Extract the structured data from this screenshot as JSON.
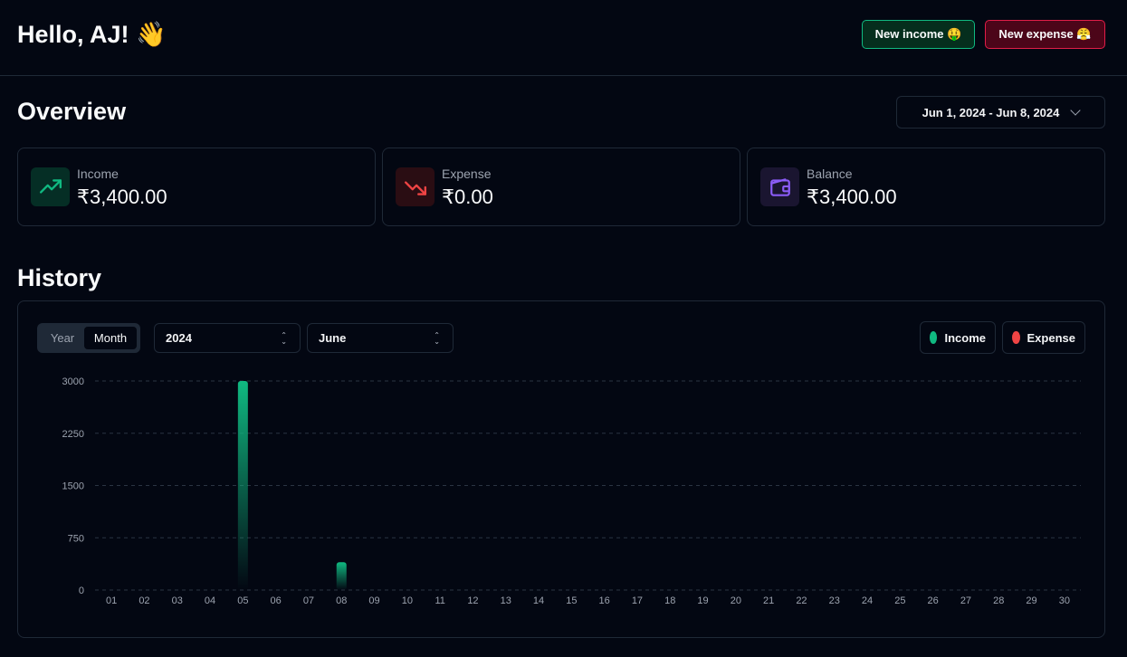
{
  "header": {
    "greeting": "Hello, AJ! 👋",
    "new_income_label": "New income 🤑",
    "new_expense_label": "New expense 😤"
  },
  "overview": {
    "title": "Overview",
    "date_range": "Jun 1, 2024 - Jun 8, 2024",
    "cards": [
      {
        "label": "Income",
        "value": "₹3,400.00",
        "icon": "trending-up-icon",
        "color": "#10b981"
      },
      {
        "label": "Expense",
        "value": "₹0.00",
        "icon": "trending-down-icon",
        "color": "#ef4444"
      },
      {
        "label": "Balance",
        "value": "₹3,400.00",
        "icon": "wallet-icon",
        "color": "#8b5cf6"
      }
    ]
  },
  "history": {
    "title": "History",
    "timeframe_options": [
      "Year",
      "Month"
    ],
    "timeframe_selected": "Month",
    "year_select": "2024",
    "month_select": "June",
    "legend": [
      {
        "label": "Income",
        "color": "#10b981"
      },
      {
        "label": "Expense",
        "color": "#ef4444"
      }
    ]
  },
  "chart_data": {
    "type": "bar",
    "categories": [
      "01",
      "02",
      "03",
      "04",
      "05",
      "06",
      "07",
      "08",
      "09",
      "10",
      "11",
      "12",
      "13",
      "14",
      "15",
      "16",
      "17",
      "18",
      "19",
      "20",
      "21",
      "22",
      "23",
      "24",
      "25",
      "26",
      "27",
      "28",
      "29",
      "30"
    ],
    "series": [
      {
        "name": "Income",
        "values": [
          0,
          0,
          0,
          0,
          3000,
          0,
          0,
          400,
          0,
          0,
          0,
          0,
          0,
          0,
          0,
          0,
          0,
          0,
          0,
          0,
          0,
          0,
          0,
          0,
          0,
          0,
          0,
          0,
          0,
          0
        ]
      },
      {
        "name": "Expense",
        "values": [
          0,
          0,
          0,
          0,
          0,
          0,
          0,
          0,
          0,
          0,
          0,
          0,
          0,
          0,
          0,
          0,
          0,
          0,
          0,
          0,
          0,
          0,
          0,
          0,
          0,
          0,
          0,
          0,
          0,
          0
        ]
      }
    ],
    "y_ticks": [
      0,
      750,
      1500,
      2250,
      3000
    ],
    "ylim": [
      0,
      3000
    ],
    "grid": true,
    "colors": {
      "income": "#10b981",
      "expense": "#ef4444"
    }
  }
}
